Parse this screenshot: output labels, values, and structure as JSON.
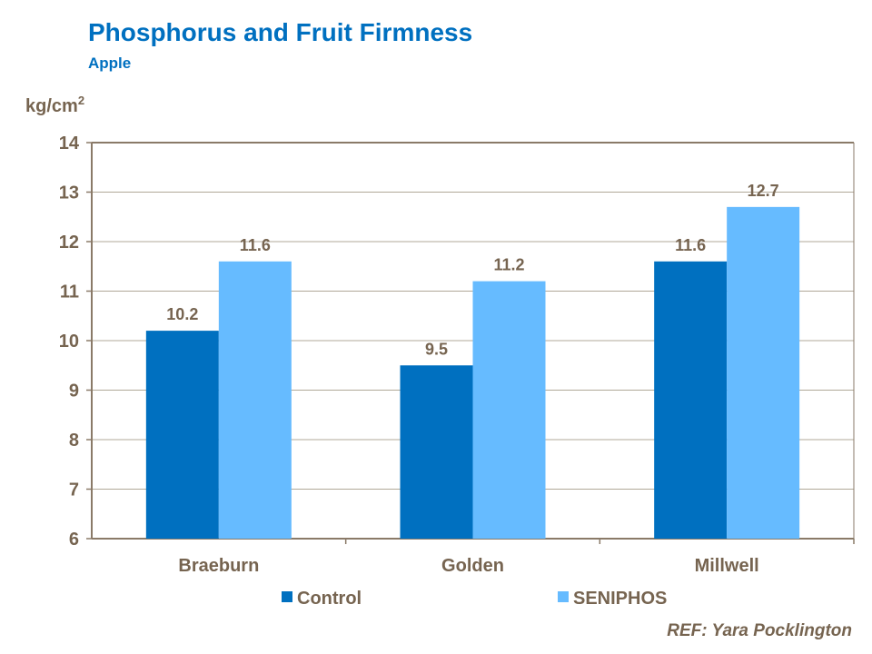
{
  "title": "Phosphorus  and Fruit Firmness",
  "subtitle": "Apple",
  "reference": "REF: Yara Pocklington",
  "chart_data": {
    "type": "bar",
    "title": "Phosphorus  and Fruit Firmness",
    "subtitle": "Apple",
    "ylabel": "kg/cm",
    "ylabel_superscript": "2",
    "ylim": [
      6,
      14
    ],
    "yticks": [
      6,
      7,
      8,
      9,
      10,
      11,
      12,
      13,
      14
    ],
    "grid": true,
    "legend": "bottom",
    "categories": [
      "Braeburn",
      "Golden",
      "Millwell"
    ],
    "series": [
      {
        "name": "Control",
        "color": "#0070C0",
        "values": [
          10.2,
          9.5,
          11.6
        ]
      },
      {
        "name": "SENIPHOS",
        "color": "#66BBFF",
        "values": [
          11.6,
          11.2,
          12.7
        ]
      }
    ]
  }
}
